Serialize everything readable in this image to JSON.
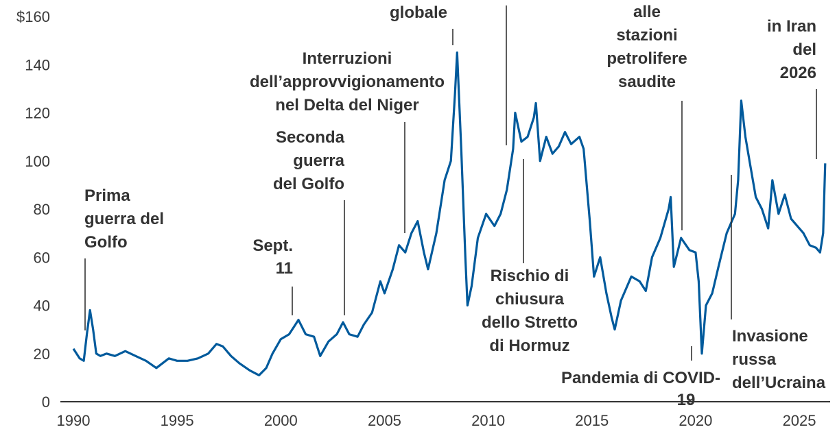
{
  "chart_data": {
    "type": "line",
    "title": "",
    "xlabel": "",
    "ylabel": "",
    "xlim": [
      1989.7,
      2026.5
    ],
    "ylim": [
      0,
      160
    ],
    "y_ticks": [
      "0",
      "20",
      "40",
      "60",
      "80",
      "100",
      "120",
      "140",
      "$160"
    ],
    "y_tick_values": [
      0,
      20,
      40,
      60,
      80,
      100,
      120,
      140,
      160
    ],
    "x_ticks": [
      "1990",
      "1995",
      "2000",
      "2005",
      "2010",
      "2015",
      "2020",
      "2025"
    ],
    "x_tick_values": [
      1990,
      1995,
      2000,
      2005,
      2010,
      2015,
      2020,
      2025
    ],
    "grid": false,
    "line_color": "#005a9c",
    "series": [
      {
        "x": [
          1990.0,
          1990.3,
          1990.5,
          1990.65,
          1990.8,
          1990.95,
          1991.1,
          1991.3,
          1991.6,
          1992.0,
          1992.5,
          1993.0,
          1993.5,
          1994.0,
          1994.3,
          1994.6,
          1995.0,
          1995.5,
          1996.0,
          1996.5,
          1996.9,
          1997.2,
          1997.6,
          1998.0,
          1998.5,
          1998.95,
          1999.3,
          1999.6,
          2000.0,
          2000.4,
          2000.7,
          2000.85,
          2001.2,
          2001.6,
          2001.9,
          2002.3,
          2002.7,
          2003.0,
          2003.3,
          2003.7,
          2004.0,
          2004.4,
          2004.8,
          2005.0,
          2005.4,
          2005.7,
          2006.0,
          2006.3,
          2006.6,
          2006.9,
          2007.1,
          2007.5,
          2007.9,
          2008.2,
          2008.4,
          2008.5,
          2008.7,
          2008.9,
          2009.0,
          2009.2,
          2009.5,
          2009.9,
          2010.3,
          2010.6,
          2010.9,
          2011.2,
          2011.3,
          2011.6,
          2011.9,
          2012.2,
          2012.3,
          2012.5,
          2012.8,
          2013.1,
          2013.4,
          2013.7,
          2014.0,
          2014.4,
          2014.6,
          2014.9,
          2015.1,
          2015.4,
          2015.7,
          2015.95,
          2016.1,
          2016.4,
          2016.9,
          2017.3,
          2017.6,
          2017.9,
          2018.3,
          2018.7,
          2018.8,
          2018.95,
          2019.3,
          2019.7,
          2020.0,
          2020.15,
          2020.3,
          2020.5,
          2020.8,
          2021.1,
          2021.5,
          2021.9,
          2022.05,
          2022.2,
          2022.4,
          2022.6,
          2022.9,
          2023.2,
          2023.5,
          2023.7,
          2024.0,
          2024.3,
          2024.6,
          2024.9,
          2025.2,
          2025.5,
          2025.8,
          2026.0,
          2026.15,
          2026.25
        ],
        "y": [
          22,
          18,
          17,
          28,
          38,
          30,
          20,
          19,
          20,
          19,
          21,
          19,
          17,
          14,
          16,
          18,
          17,
          17,
          18,
          20,
          24,
          23,
          19,
          16,
          13,
          11,
          14,
          20,
          26,
          28,
          32,
          34,
          28,
          27,
          19,
          25,
          28,
          33,
          28,
          27,
          32,
          37,
          50,
          45,
          55,
          65,
          62,
          70,
          75,
          62,
          55,
          70,
          92,
          100,
          128,
          145,
          105,
          60,
          40,
          48,
          68,
          78,
          73,
          78,
          88,
          105,
          120,
          108,
          110,
          118,
          124,
          100,
          110,
          103,
          106,
          112,
          107,
          110,
          105,
          75,
          52,
          60,
          45,
          35,
          30,
          42,
          52,
          50,
          46,
          60,
          68,
          80,
          85,
          56,
          68,
          63,
          62,
          50,
          20,
          40,
          45,
          56,
          70,
          78,
          92,
          125,
          110,
          100,
          85,
          80,
          72,
          92,
          78,
          86,
          76,
          73,
          70,
          65,
          64,
          62,
          70,
          99
        ]
      }
    ],
    "annotations": [
      {
        "lines": [
          "Prima",
          "guerra del",
          "Golfo"
        ],
        "year": 1990.6
      },
      {
        "lines": [
          "Sept.",
          "11"
        ],
        "year": 2000.9
      },
      {
        "lines": [
          "Seconda",
          "guerra",
          "del Golfo"
        ],
        "year": 2003.2
      },
      {
        "lines": [
          "Interruzioni",
          "dell’approvvigionamento",
          "nel Delta del Niger"
        ],
        "year": 2006.1
      },
      {
        "lines": [
          "globale"
        ],
        "year": 2008.5
      },
      {
        "lines": [],
        "year": 2011.1
      },
      {
        "lines": [
          "Rischio di",
          "chiusura",
          "dello Stretto",
          "di Hormuz"
        ],
        "year": 2011.9
      },
      {
        "lines": [
          "alle",
          "stazioni",
          "petrolifere",
          "saudite"
        ],
        "year": 2019.7
      },
      {
        "lines": [
          "Pandemia di COVID-",
          "19"
        ],
        "year": 2020.2
      },
      {
        "lines": [
          "Invasione",
          "russa",
          "dell’Ucraina"
        ],
        "year": 2022.1
      },
      {
        "lines": [
          "in Iran",
          "del",
          "2026"
        ],
        "year": 2026.1
      }
    ]
  }
}
